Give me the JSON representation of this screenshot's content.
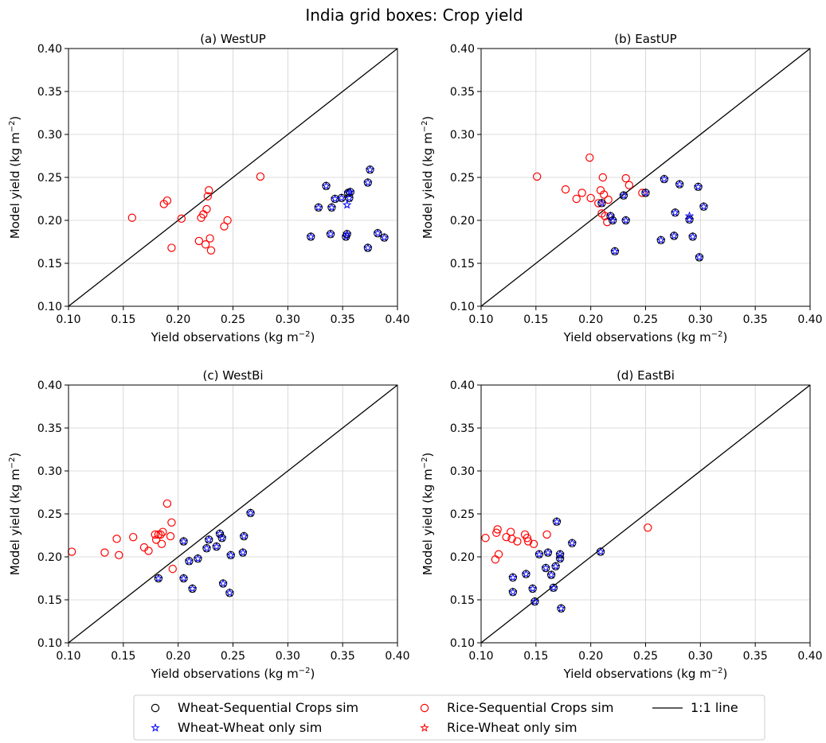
{
  "figure": {
    "title": "India grid boxes: Crop yield"
  },
  "colors": {
    "wheat_seq": "#000000",
    "wheat_only": "#0000ff",
    "rice_seq": "#ff0000",
    "rice_only": "#ff0000",
    "one_to_one": "#000000",
    "grid": "#d0d0d0"
  },
  "legend": {
    "placement": "bottom-center",
    "entries": [
      {
        "key": "wheat_seq",
        "label": "Wheat-Sequential Crops sim",
        "marker": "circle"
      },
      {
        "key": "wheat_only",
        "label": "Wheat-Wheat only sim",
        "marker": "star"
      },
      {
        "key": "rice_seq",
        "label": "Rice-Sequential Crops sim",
        "marker": "circle"
      },
      {
        "key": "rice_only",
        "label": "Rice-Wheat only sim",
        "marker": "star"
      },
      {
        "key": "one_to_one",
        "label": "1:1 line",
        "marker": "line"
      }
    ]
  },
  "chart_data": [
    {
      "type": "scatter",
      "title": "(a)  WestUP",
      "xlabel": "Yield observations (kg m",
      "ylabel": "Model yield (kg m",
      "unit_exponent": "−2",
      "xlim": [
        0.1,
        0.4
      ],
      "ylim": [
        0.1,
        0.4
      ],
      "xticks": [
        "0.10",
        "0.15",
        "0.20",
        "0.25",
        "0.30",
        "0.35",
        "0.40"
      ],
      "yticks": [
        "0.10",
        "0.15",
        "0.20",
        "0.25",
        "0.30",
        "0.35",
        "0.40"
      ],
      "grid": true,
      "wheat": [
        [
          0.321,
          0.181
        ],
        [
          0.328,
          0.215
        ],
        [
          0.335,
          0.24
        ],
        [
          0.339,
          0.184
        ],
        [
          0.34,
          0.215
        ],
        [
          0.343,
          0.225
        ],
        [
          0.349,
          0.226
        ],
        [
          0.353,
          0.181
        ],
        [
          0.354,
          0.184
        ],
        [
          0.355,
          0.232
        ],
        [
          0.356,
          0.226
        ],
        [
          0.357,
          0.233
        ],
        [
          0.373,
          0.168
        ],
        [
          0.373,
          0.244
        ],
        [
          0.375,
          0.259
        ],
        [
          0.382,
          0.185
        ],
        [
          0.388,
          0.18
        ]
      ],
      "rice": [
        [
          0.158,
          0.203
        ],
        [
          0.187,
          0.219
        ],
        [
          0.19,
          0.223
        ],
        [
          0.194,
          0.168
        ],
        [
          0.203,
          0.202
        ],
        [
          0.219,
          0.176
        ],
        [
          0.221,
          0.203
        ],
        [
          0.223,
          0.207
        ],
        [
          0.225,
          0.172
        ],
        [
          0.226,
          0.213
        ],
        [
          0.227,
          0.228
        ],
        [
          0.228,
          0.235
        ],
        [
          0.229,
          0.179
        ],
        [
          0.23,
          0.165
        ],
        [
          0.242,
          0.193
        ],
        [
          0.245,
          0.2
        ],
        [
          0.275,
          0.251
        ]
      ],
      "wheat_only_stars": [
        [
          0.354,
          0.218
        ]
      ],
      "rice_only_stars": []
    },
    {
      "type": "scatter",
      "title": "(b)  EastUP",
      "xlabel": "Yield observations (kg m",
      "ylabel": "Model yield (kg m",
      "unit_exponent": "−2",
      "xlim": [
        0.1,
        0.4
      ],
      "ylim": [
        0.1,
        0.4
      ],
      "xticks": [
        "0.10",
        "0.15",
        "0.20",
        "0.25",
        "0.30",
        "0.35",
        "0.40"
      ],
      "yticks": [
        "0.10",
        "0.15",
        "0.20",
        "0.25",
        "0.30",
        "0.35",
        "0.40"
      ],
      "grid": true,
      "wheat": [
        [
          0.21,
          0.22
        ],
        [
          0.218,
          0.205
        ],
        [
          0.22,
          0.2
        ],
        [
          0.222,
          0.164
        ],
        [
          0.23,
          0.229
        ],
        [
          0.232,
          0.2
        ],
        [
          0.25,
          0.232
        ],
        [
          0.264,
          0.177
        ],
        [
          0.267,
          0.248
        ],
        [
          0.276,
          0.182
        ],
        [
          0.277,
          0.209
        ],
        [
          0.281,
          0.242
        ],
        [
          0.29,
          0.201
        ],
        [
          0.293,
          0.181
        ],
        [
          0.298,
          0.239
        ],
        [
          0.299,
          0.157
        ],
        [
          0.303,
          0.216
        ]
      ],
      "rice": [
        [
          0.151,
          0.251
        ],
        [
          0.177,
          0.236
        ],
        [
          0.187,
          0.225
        ],
        [
          0.192,
          0.232
        ],
        [
          0.199,
          0.273
        ],
        [
          0.2,
          0.226
        ],
        [
          0.207,
          0.22
        ],
        [
          0.209,
          0.235
        ],
        [
          0.21,
          0.208
        ],
        [
          0.211,
          0.25
        ],
        [
          0.212,
          0.23
        ],
        [
          0.213,
          0.205
        ],
        [
          0.215,
          0.198
        ],
        [
          0.216,
          0.224
        ],
        [
          0.232,
          0.249
        ],
        [
          0.235,
          0.241
        ],
        [
          0.247,
          0.232
        ]
      ],
      "wheat_only_stars": [
        [
          0.29,
          0.205
        ]
      ],
      "rice_only_stars": []
    },
    {
      "type": "scatter",
      "title": "(c)  WestBi",
      "xlabel": "Yield observations (kg m",
      "ylabel": "Model yield (kg m",
      "unit_exponent": "−2",
      "xlim": [
        0.1,
        0.4
      ],
      "ylim": [
        0.1,
        0.4
      ],
      "xticks": [
        "0.10",
        "0.15",
        "0.20",
        "0.25",
        "0.30",
        "0.35",
        "0.40"
      ],
      "yticks": [
        "0.10",
        "0.15",
        "0.20",
        "0.25",
        "0.30",
        "0.35",
        "0.40"
      ],
      "grid": true,
      "wheat": [
        [
          0.182,
          0.175
        ],
        [
          0.205,
          0.218
        ],
        [
          0.205,
          0.175
        ],
        [
          0.21,
          0.195
        ],
        [
          0.213,
          0.163
        ],
        [
          0.218,
          0.198
        ],
        [
          0.226,
          0.21
        ],
        [
          0.228,
          0.22
        ],
        [
          0.235,
          0.212
        ],
        [
          0.238,
          0.227
        ],
        [
          0.24,
          0.222
        ],
        [
          0.241,
          0.169
        ],
        [
          0.247,
          0.158
        ],
        [
          0.248,
          0.202
        ],
        [
          0.259,
          0.205
        ],
        [
          0.26,
          0.224
        ],
        [
          0.266,
          0.251
        ]
      ],
      "rice": [
        [
          0.103,
          0.206
        ],
        [
          0.133,
          0.205
        ],
        [
          0.144,
          0.221
        ],
        [
          0.146,
          0.202
        ],
        [
          0.159,
          0.223
        ],
        [
          0.169,
          0.211
        ],
        [
          0.173,
          0.207
        ],
        [
          0.179,
          0.226
        ],
        [
          0.18,
          0.22
        ],
        [
          0.184,
          0.226
        ],
        [
          0.185,
          0.215
        ],
        [
          0.186,
          0.229
        ],
        [
          0.19,
          0.262
        ],
        [
          0.193,
          0.224
        ],
        [
          0.194,
          0.24
        ],
        [
          0.195,
          0.186
        ],
        [
          0.182,
          0.226
        ]
      ],
      "wheat_only_stars": [],
      "rice_only_stars": []
    },
    {
      "type": "scatter",
      "title": "(d)  EastBi",
      "xlabel": "Yield observations (kg m",
      "ylabel": "Model yield (kg m",
      "unit_exponent": "−2",
      "xlim": [
        0.1,
        0.4
      ],
      "ylim": [
        0.1,
        0.4
      ],
      "xticks": [
        "0.10",
        "0.15",
        "0.20",
        "0.25",
        "0.30",
        "0.35",
        "0.40"
      ],
      "yticks": [
        "0.10",
        "0.15",
        "0.20",
        "0.25",
        "0.30",
        "0.35",
        "0.40"
      ],
      "grid": true,
      "wheat": [
        [
          0.129,
          0.176
        ],
        [
          0.129,
          0.159
        ],
        [
          0.141,
          0.18
        ],
        [
          0.147,
          0.163
        ],
        [
          0.149,
          0.148
        ],
        [
          0.153,
          0.203
        ],
        [
          0.159,
          0.187
        ],
        [
          0.161,
          0.205
        ],
        [
          0.164,
          0.179
        ],
        [
          0.166,
          0.164
        ],
        [
          0.168,
          0.189
        ],
        [
          0.169,
          0.241
        ],
        [
          0.172,
          0.198
        ],
        [
          0.172,
          0.203
        ],
        [
          0.173,
          0.14
        ],
        [
          0.183,
          0.216
        ],
        [
          0.209,
          0.206
        ]
      ],
      "rice": [
        [
          0.104,
          0.222
        ],
        [
          0.113,
          0.197
        ],
        [
          0.114,
          0.228
        ],
        [
          0.115,
          0.232
        ],
        [
          0.116,
          0.203
        ],
        [
          0.123,
          0.223
        ],
        [
          0.127,
          0.229
        ],
        [
          0.128,
          0.221
        ],
        [
          0.133,
          0.218
        ],
        [
          0.14,
          0.226
        ],
        [
          0.142,
          0.222
        ],
        [
          0.143,
          0.218
        ],
        [
          0.148,
          0.215
        ],
        [
          0.16,
          0.226
        ],
        [
          0.252,
          0.234
        ]
      ],
      "wheat_only_stars": [],
      "rice_only_stars": []
    }
  ]
}
